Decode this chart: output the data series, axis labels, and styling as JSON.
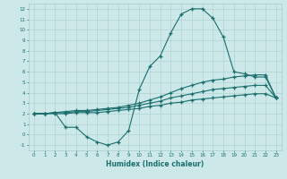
{
  "xlabel": "Humidex (Indice chaleur)",
  "background_color": "#cce8e8",
  "grid_color": "#aacccc",
  "line_color": "#1a6e6e",
  "xlim": [
    -0.5,
    23.5
  ],
  "ylim": [
    -1.5,
    12.5
  ],
  "line1_y": [
    2.0,
    2.0,
    2.1,
    0.7,
    0.7,
    -0.2,
    -0.7,
    -1.0,
    -0.7,
    0.4,
    4.3,
    6.5,
    7.5,
    9.7,
    11.5,
    12.0,
    12.0,
    11.1,
    9.3,
    6.0,
    5.8,
    5.5,
    5.5,
    3.5
  ],
  "line2_y": [
    2.0,
    2.0,
    2.1,
    2.2,
    2.3,
    2.3,
    2.4,
    2.5,
    2.6,
    2.8,
    3.0,
    3.3,
    3.6,
    4.0,
    4.4,
    4.7,
    5.0,
    5.2,
    5.3,
    5.5,
    5.6,
    5.7,
    5.7,
    3.5
  ],
  "line3_y": [
    2.0,
    2.0,
    2.1,
    2.1,
    2.2,
    2.2,
    2.3,
    2.4,
    2.5,
    2.6,
    2.8,
    3.0,
    3.2,
    3.5,
    3.7,
    3.9,
    4.1,
    4.3,
    4.4,
    4.5,
    4.6,
    4.7,
    4.7,
    3.5
  ],
  "line4_y": [
    2.0,
    2.0,
    2.0,
    2.0,
    2.1,
    2.1,
    2.1,
    2.2,
    2.3,
    2.4,
    2.5,
    2.7,
    2.8,
    3.0,
    3.1,
    3.3,
    3.4,
    3.5,
    3.6,
    3.7,
    3.8,
    3.9,
    3.9,
    3.5
  ]
}
